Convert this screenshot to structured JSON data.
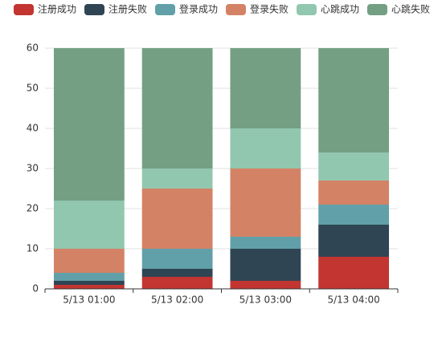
{
  "chart_data": {
    "type": "stacked-bar",
    "categories": [
      "5/13 01:00",
      "5/13 02:00",
      "5/13 03:00",
      "5/13 04:00"
    ],
    "series": [
      {
        "name": "注册成功",
        "color": "#c23531",
        "values": [
          1,
          3,
          2,
          8
        ]
      },
      {
        "name": "注册失败",
        "color": "#2f4554",
        "values": [
          1,
          2,
          8,
          8
        ]
      },
      {
        "name": "登录成功",
        "color": "#61a0a8",
        "values": [
          2,
          5,
          3,
          5
        ]
      },
      {
        "name": "登录失败",
        "color": "#d48265",
        "values": [
          6,
          15,
          17,
          6
        ]
      },
      {
        "name": "心跳成功",
        "color": "#91c7ae",
        "values": [
          12,
          5,
          10,
          7
        ]
      },
      {
        "name": "心跳失败",
        "color": "#749f83",
        "values": [
          38,
          30,
          20,
          26
        ]
      }
    ],
    "ylim": [
      0,
      60
    ],
    "yticks": [
      0,
      10,
      20,
      30,
      40,
      50,
      60
    ],
    "grid": true,
    "legend": "top"
  }
}
